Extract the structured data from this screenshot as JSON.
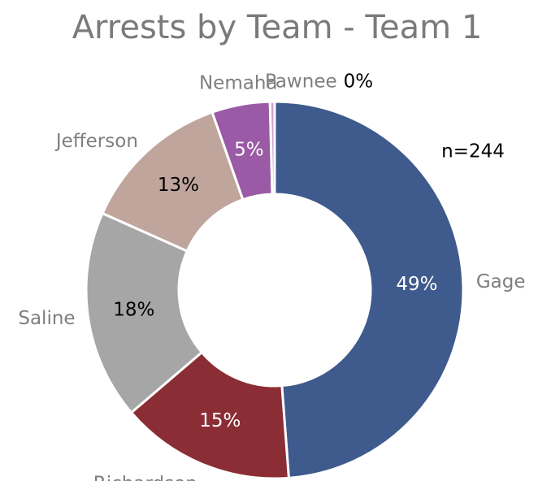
{
  "chart_data": {
    "type": "donut",
    "title": "Arrests by Team -  Team 1",
    "annotation": "n=244",
    "categories": [
      "Gage",
      "Richardson",
      "Saline",
      "Jefferson",
      "Nemaha",
      "Pawnee"
    ],
    "values": [
      49,
      15,
      18,
      13,
      5,
      0.4
    ],
    "value_labels": [
      "49%",
      "15%",
      "18%",
      "13%",
      "5%",
      "0%"
    ],
    "colors": [
      "#3f5a8c",
      "#8b2d34",
      "#a6a6a6",
      "#bfa59c",
      "#9b5aa5",
      "#caa6d2"
    ]
  }
}
